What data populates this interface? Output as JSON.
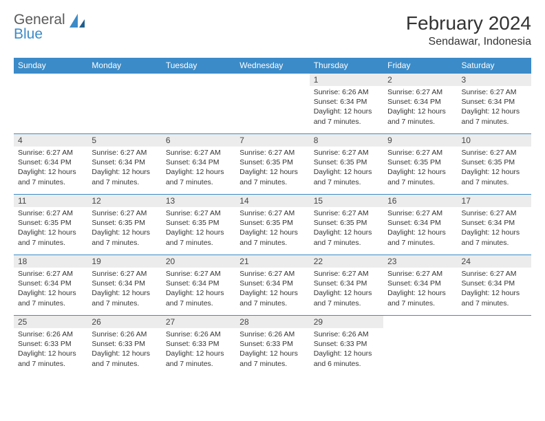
{
  "brand": {
    "line1": "General",
    "line2": "Blue"
  },
  "title": "February 2024",
  "location": "Sendawar, Indonesia",
  "colors": {
    "header_bg": "#3b8bc8",
    "header_text": "#ffffff",
    "daynum_bg": "#ececec",
    "border": "#3b8bc8",
    "brand_gray": "#5a5a5a",
    "brand_blue": "#3b8bc8",
    "text": "#333333",
    "page_bg": "#ffffff"
  },
  "weekdays": [
    "Sunday",
    "Monday",
    "Tuesday",
    "Wednesday",
    "Thursday",
    "Friday",
    "Saturday"
  ],
  "weeks": [
    [
      {
        "n": "",
        "sr": "",
        "ss": "",
        "dl": ""
      },
      {
        "n": "",
        "sr": "",
        "ss": "",
        "dl": ""
      },
      {
        "n": "",
        "sr": "",
        "ss": "",
        "dl": ""
      },
      {
        "n": "",
        "sr": "",
        "ss": "",
        "dl": ""
      },
      {
        "n": "1",
        "sr": "Sunrise: 6:26 AM",
        "ss": "Sunset: 6:34 PM",
        "dl": "Daylight: 12 hours and 7 minutes."
      },
      {
        "n": "2",
        "sr": "Sunrise: 6:27 AM",
        "ss": "Sunset: 6:34 PM",
        "dl": "Daylight: 12 hours and 7 minutes."
      },
      {
        "n": "3",
        "sr": "Sunrise: 6:27 AM",
        "ss": "Sunset: 6:34 PM",
        "dl": "Daylight: 12 hours and 7 minutes."
      }
    ],
    [
      {
        "n": "4",
        "sr": "Sunrise: 6:27 AM",
        "ss": "Sunset: 6:34 PM",
        "dl": "Daylight: 12 hours and 7 minutes."
      },
      {
        "n": "5",
        "sr": "Sunrise: 6:27 AM",
        "ss": "Sunset: 6:34 PM",
        "dl": "Daylight: 12 hours and 7 minutes."
      },
      {
        "n": "6",
        "sr": "Sunrise: 6:27 AM",
        "ss": "Sunset: 6:34 PM",
        "dl": "Daylight: 12 hours and 7 minutes."
      },
      {
        "n": "7",
        "sr": "Sunrise: 6:27 AM",
        "ss": "Sunset: 6:35 PM",
        "dl": "Daylight: 12 hours and 7 minutes."
      },
      {
        "n": "8",
        "sr": "Sunrise: 6:27 AM",
        "ss": "Sunset: 6:35 PM",
        "dl": "Daylight: 12 hours and 7 minutes."
      },
      {
        "n": "9",
        "sr": "Sunrise: 6:27 AM",
        "ss": "Sunset: 6:35 PM",
        "dl": "Daylight: 12 hours and 7 minutes."
      },
      {
        "n": "10",
        "sr": "Sunrise: 6:27 AM",
        "ss": "Sunset: 6:35 PM",
        "dl": "Daylight: 12 hours and 7 minutes."
      }
    ],
    [
      {
        "n": "11",
        "sr": "Sunrise: 6:27 AM",
        "ss": "Sunset: 6:35 PM",
        "dl": "Daylight: 12 hours and 7 minutes."
      },
      {
        "n": "12",
        "sr": "Sunrise: 6:27 AM",
        "ss": "Sunset: 6:35 PM",
        "dl": "Daylight: 12 hours and 7 minutes."
      },
      {
        "n": "13",
        "sr": "Sunrise: 6:27 AM",
        "ss": "Sunset: 6:35 PM",
        "dl": "Daylight: 12 hours and 7 minutes."
      },
      {
        "n": "14",
        "sr": "Sunrise: 6:27 AM",
        "ss": "Sunset: 6:35 PM",
        "dl": "Daylight: 12 hours and 7 minutes."
      },
      {
        "n": "15",
        "sr": "Sunrise: 6:27 AM",
        "ss": "Sunset: 6:35 PM",
        "dl": "Daylight: 12 hours and 7 minutes."
      },
      {
        "n": "16",
        "sr": "Sunrise: 6:27 AM",
        "ss": "Sunset: 6:34 PM",
        "dl": "Daylight: 12 hours and 7 minutes."
      },
      {
        "n": "17",
        "sr": "Sunrise: 6:27 AM",
        "ss": "Sunset: 6:34 PM",
        "dl": "Daylight: 12 hours and 7 minutes."
      }
    ],
    [
      {
        "n": "18",
        "sr": "Sunrise: 6:27 AM",
        "ss": "Sunset: 6:34 PM",
        "dl": "Daylight: 12 hours and 7 minutes."
      },
      {
        "n": "19",
        "sr": "Sunrise: 6:27 AM",
        "ss": "Sunset: 6:34 PM",
        "dl": "Daylight: 12 hours and 7 minutes."
      },
      {
        "n": "20",
        "sr": "Sunrise: 6:27 AM",
        "ss": "Sunset: 6:34 PM",
        "dl": "Daylight: 12 hours and 7 minutes."
      },
      {
        "n": "21",
        "sr": "Sunrise: 6:27 AM",
        "ss": "Sunset: 6:34 PM",
        "dl": "Daylight: 12 hours and 7 minutes."
      },
      {
        "n": "22",
        "sr": "Sunrise: 6:27 AM",
        "ss": "Sunset: 6:34 PM",
        "dl": "Daylight: 12 hours and 7 minutes."
      },
      {
        "n": "23",
        "sr": "Sunrise: 6:27 AM",
        "ss": "Sunset: 6:34 PM",
        "dl": "Daylight: 12 hours and 7 minutes."
      },
      {
        "n": "24",
        "sr": "Sunrise: 6:27 AM",
        "ss": "Sunset: 6:34 PM",
        "dl": "Daylight: 12 hours and 7 minutes."
      }
    ],
    [
      {
        "n": "25",
        "sr": "Sunrise: 6:26 AM",
        "ss": "Sunset: 6:33 PM",
        "dl": "Daylight: 12 hours and 7 minutes."
      },
      {
        "n": "26",
        "sr": "Sunrise: 6:26 AM",
        "ss": "Sunset: 6:33 PM",
        "dl": "Daylight: 12 hours and 7 minutes."
      },
      {
        "n": "27",
        "sr": "Sunrise: 6:26 AM",
        "ss": "Sunset: 6:33 PM",
        "dl": "Daylight: 12 hours and 7 minutes."
      },
      {
        "n": "28",
        "sr": "Sunrise: 6:26 AM",
        "ss": "Sunset: 6:33 PM",
        "dl": "Daylight: 12 hours and 7 minutes."
      },
      {
        "n": "29",
        "sr": "Sunrise: 6:26 AM",
        "ss": "Sunset: 6:33 PM",
        "dl": "Daylight: 12 hours and 6 minutes."
      },
      {
        "n": "",
        "sr": "",
        "ss": "",
        "dl": ""
      },
      {
        "n": "",
        "sr": "",
        "ss": "",
        "dl": ""
      }
    ]
  ]
}
